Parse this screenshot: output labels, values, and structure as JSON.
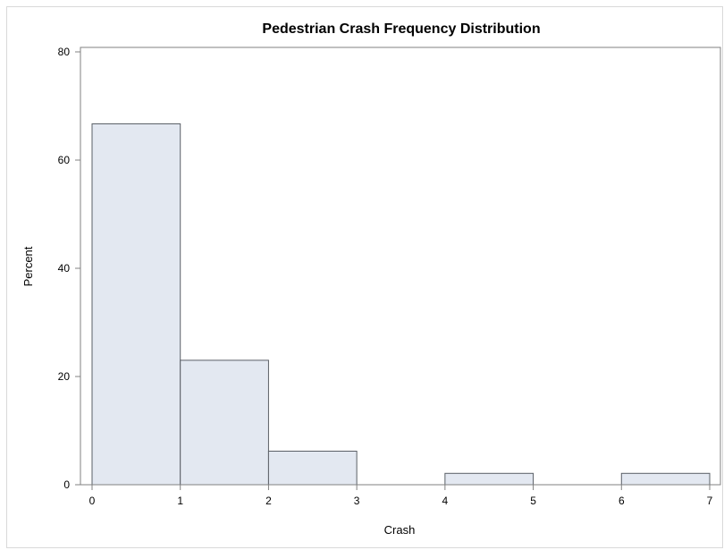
{
  "chart_data": {
    "type": "histogram",
    "title": "Pedestrian Crash Frequency Distribution",
    "xlabel": "Crash",
    "ylabel": "Percent",
    "xlim": [
      0,
      7
    ],
    "ylim": [
      0,
      80
    ],
    "x_ticks": [
      "0",
      "1",
      "2",
      "3",
      "4",
      "5",
      "6",
      "7"
    ],
    "y_ticks": [
      "0",
      "20",
      "40",
      "60",
      "80"
    ],
    "bins": [
      {
        "start": 0,
        "end": 1,
        "value": 66.7
      },
      {
        "start": 1,
        "end": 2,
        "value": 23.0
      },
      {
        "start": 2,
        "end": 3,
        "value": 6.2
      },
      {
        "start": 3,
        "end": 4,
        "value": 0
      },
      {
        "start": 4,
        "end": 5,
        "value": 2.1
      },
      {
        "start": 5,
        "end": 6,
        "value": 0
      },
      {
        "start": 6,
        "end": 7,
        "value": 2.1
      }
    ],
    "grid": false,
    "colors": {
      "bar_fill": "#e3e8f1",
      "bar_stroke": "#5a5f66",
      "axis": "#808080"
    }
  }
}
